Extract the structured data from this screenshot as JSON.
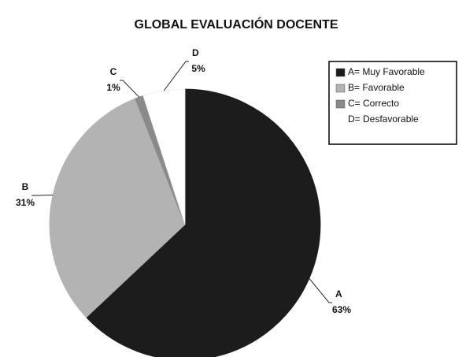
{
  "chart_data": {
    "type": "pie",
    "title": "GLOBAL EVALUACIÓN  DOCENTE",
    "categories": [
      "A",
      "B",
      "C",
      "D"
    ],
    "values": [
      63,
      31,
      1,
      5
    ],
    "value_labels": [
      "63%",
      "31%",
      "1%",
      "5%"
    ],
    "colors": [
      "#1c1c1c",
      "#b3b3b3",
      "#8a8a8a",
      "#ffffff"
    ],
    "legend": [
      "A= Muy Favorable",
      "B= Favorable",
      "C= Correcto",
      "D= Desfavorable"
    ],
    "legend_position": "upper right"
  }
}
